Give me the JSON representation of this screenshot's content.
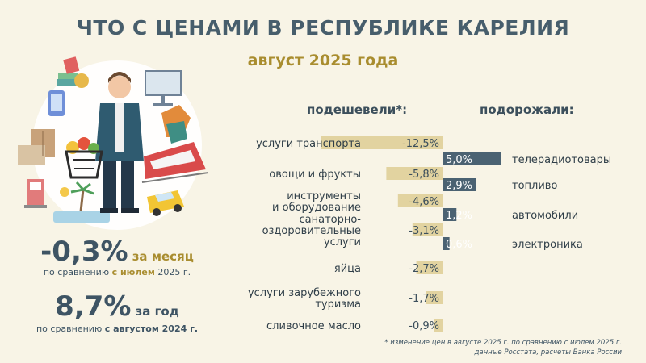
{
  "header": {
    "title": "ЧТО С ЦЕНАМИ В РЕСПУБЛИКЕ КАРЕЛИЯ",
    "subtitle": "август 2025 года"
  },
  "columns": {
    "down_label": "подешевели*:",
    "up_label": "подорожали:"
  },
  "chart_data": {
    "type": "bar",
    "series": [
      {
        "name": "подешевели*:",
        "categories": [
          [
            "услуги транспорта"
          ],
          [
            "овощи и фрукты"
          ],
          [
            "инструменты",
            "и оборудование"
          ],
          [
            "санаторно-",
            "оздоровительные",
            "услуги"
          ],
          [
            "яйца"
          ],
          [
            "услуги зарубежного",
            "туризма"
          ],
          [
            "сливочное масло"
          ]
        ],
        "values": [
          -12.5,
          -5.8,
          -4.6,
          -3.1,
          -2.7,
          -1.7,
          -0.9
        ],
        "labels": [
          "-12,5%",
          "-5,8%",
          "-4,6%",
          "-3,1%",
          "-2,7%",
          "-1,7%",
          "-0,9%"
        ],
        "color": "#e2d3a0"
      },
      {
        "name": "подорожали:",
        "categories": [
          [
            "телерадиотовары"
          ],
          [
            "топливо"
          ],
          [
            "автомобили"
          ],
          [
            "электроника"
          ]
        ],
        "values": [
          5.0,
          2.9,
          1.2,
          0.6
        ],
        "labels": [
          "5,0%",
          "2,9%",
          "1,2%",
          "0,6%"
        ],
        "color": "#4b6272"
      }
    ]
  },
  "stats": {
    "month_value": "-0,3%",
    "month_unit": "за месяц",
    "month_sub_prefix": "по сравнению",
    "month_sub_highlight": "с июлем",
    "month_sub_suffix": "2025 г.",
    "year_value": "8,7%",
    "year_unit": "за год",
    "year_sub_prefix": "по сравнению",
    "year_sub_highlight": "с августом 2024 г."
  },
  "footnote": {
    "line1": "* изменение цен в августе 2025 г. по сравнению с июлем 2025 г.",
    "line2": "данные Росстата, расчеты Банка России"
  },
  "illustration": {
    "icons": [
      "person-icon",
      "shopping-basket-icon",
      "train-icon",
      "car-icon",
      "phone-icon",
      "tv-icon",
      "wardrobe-icon",
      "fuel-pump-icon",
      "palm-icon",
      "money-icon",
      "clothes-icon"
    ]
  }
}
